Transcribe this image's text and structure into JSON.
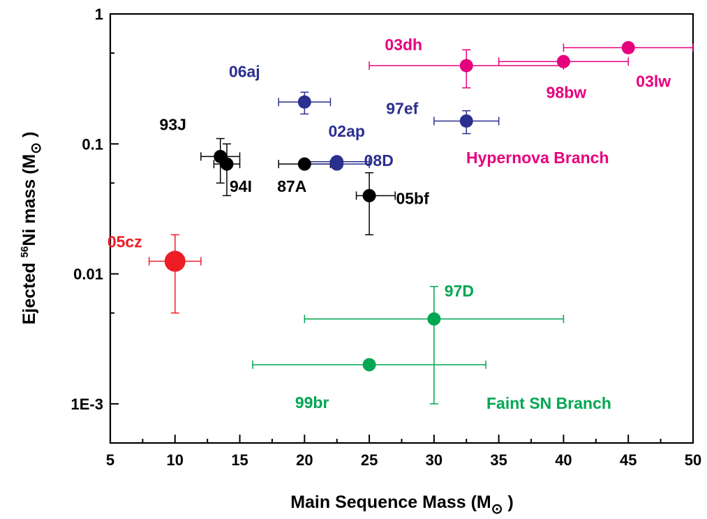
{
  "chart_data": {
    "type": "scatter",
    "xlabel": "Main Sequence Mass (M",
    "xlabel_suffix": " )",
    "ylabel_prefix": "Ejected ",
    "ylabel_sup": "56",
    "ylabel_main": "Ni mass (M",
    "ylabel_suffix": " )",
    "sun_symbol": "⊙",
    "xlim": [
      5,
      50
    ],
    "ylim": [
      0.0005,
      1
    ],
    "yscale": "log",
    "grid": false,
    "x_ticks": [
      5,
      10,
      15,
      20,
      25,
      30,
      35,
      40,
      45,
      50
    ],
    "x_tick_labels": [
      "5",
      "10",
      "15",
      "20",
      "25",
      "30",
      "35",
      "40",
      "45",
      "50"
    ],
    "y_ticks": [
      0.001,
      0.01,
      0.1,
      1
    ],
    "y_tick_labels": [
      "1E-3",
      "0.01",
      "0.1",
      "1"
    ],
    "colors": {
      "hypernova": "#e6007e",
      "normal": "#000000",
      "blue": "#2b2f8f",
      "faint": "#00a651",
      "highlight": "#ee1c25"
    },
    "points": [
      {
        "name": "05cz",
        "x": 10,
        "y": 0.0125,
        "xerr": [
          8,
          12
        ],
        "yerr": [
          0.005,
          0.02
        ],
        "color": "#ee1c25",
        "size": "large"
      },
      {
        "name": "93J",
        "x": 13.5,
        "y": 0.08,
        "xerr": [
          12,
          15
        ],
        "yerr": [
          0.05,
          0.11
        ],
        "color": "#000000"
      },
      {
        "name": "94I",
        "x": 14,
        "y": 0.07,
        "xerr": [
          13,
          15
        ],
        "yerr": [
          0.04,
          0.1
        ],
        "color": "#000000"
      },
      {
        "name": "87A",
        "x": 20,
        "y": 0.07,
        "xerr": [
          18,
          22
        ],
        "yerr": null,
        "color": "#000000"
      },
      {
        "name": "05bf",
        "x": 25,
        "y": 0.04,
        "xerr": [
          24,
          27
        ],
        "yerr": [
          0.02,
          0.06
        ],
        "color": "#000000"
      },
      {
        "name": "06aj",
        "x": 20,
        "y": 0.21,
        "xerr": [
          18,
          22
        ],
        "yerr": [
          0.17,
          0.25
        ],
        "color": "#2b2f8f"
      },
      {
        "name": "02ap",
        "x": 22.5,
        "y": 0.073,
        "xerr": [
          20,
          25
        ],
        "yerr": null,
        "color": "#2b2f8f"
      },
      {
        "name": "08D",
        "x": 22.5,
        "y": 0.07,
        "xerr": [
          20,
          25
        ],
        "yerr": null,
        "color": "#2b2f8f"
      },
      {
        "name": "97ef",
        "x": 32.5,
        "y": 0.15,
        "xerr": [
          30,
          35
        ],
        "yerr": [
          0.12,
          0.18
        ],
        "color": "#2b2f8f"
      },
      {
        "name": "03dh",
        "x": 32.5,
        "y": 0.4,
        "xerr": [
          25,
          40
        ],
        "yerr": [
          0.27,
          0.53
        ],
        "color": "#e6007e"
      },
      {
        "name": "98bw",
        "x": 40,
        "y": 0.43,
        "xerr": [
          35,
          45
        ],
        "yerr": null,
        "color": "#e6007e"
      },
      {
        "name": "03lw",
        "x": 45,
        "y": 0.55,
        "xerr": [
          40,
          50
        ],
        "yerr": null,
        "color": "#e6007e"
      },
      {
        "name": "97D",
        "x": 30,
        "y": 0.0045,
        "xerr": [
          20,
          40
        ],
        "yerr": [
          0.001,
          0.008
        ],
        "color": "#00a651"
      },
      {
        "name": "99br",
        "x": 25,
        "y": 0.002,
        "xerr": [
          16,
          34
        ],
        "yerr": null,
        "color": "#00a651"
      }
    ],
    "annotations": [
      {
        "text": "Hypernova Branch",
        "color": "#e6007e"
      },
      {
        "text": "Faint SN Branch",
        "color": "#00a651"
      }
    ]
  }
}
